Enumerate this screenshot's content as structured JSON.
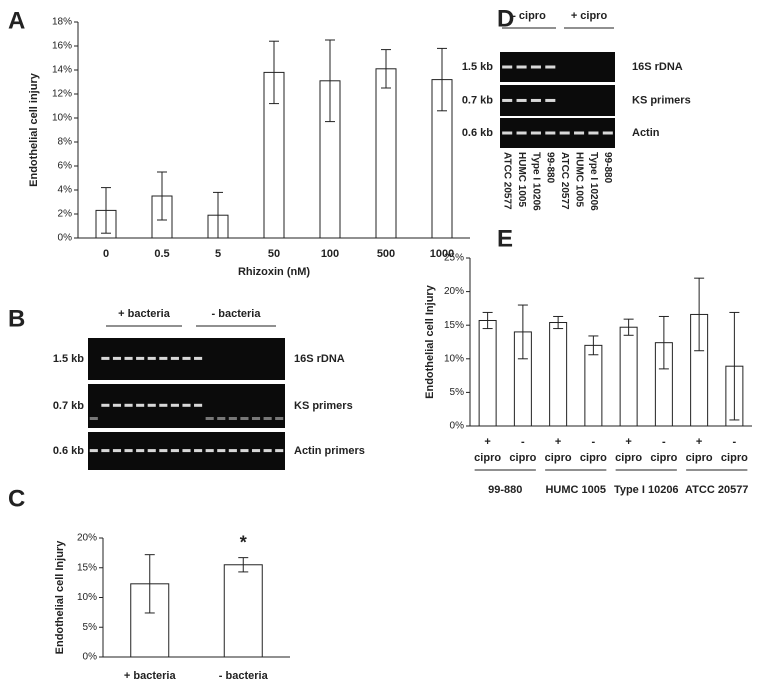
{
  "chart_data": [
    {
      "type": "bar",
      "panel": "A",
      "ylabel": "Endothelial cell injury",
      "xlabel": "Rhizoxin (nM)",
      "categories": [
        "0",
        "0.5",
        "5",
        "50",
        "100",
        "500",
        "1000"
      ],
      "values": [
        2.3,
        3.5,
        1.9,
        13.8,
        13.1,
        14.1,
        13.2
      ],
      "errors": [
        1.9,
        2.0,
        1.9,
        2.6,
        3.4,
        1.6,
        2.6
      ],
      "color": "#ffffff",
      "ylim": [
        0,
        18
      ],
      "yticks": [
        {
          "value": 0,
          "label": "0%"
        },
        {
          "value": 2,
          "label": "2%"
        },
        {
          "value": 4,
          "label": "4%"
        },
        {
          "value": 6,
          "label": "6%"
        },
        {
          "value": 8,
          "label": "8%"
        },
        {
          "value": 10,
          "label": "10%"
        },
        {
          "value": 12,
          "label": "12%"
        },
        {
          "value": 14,
          "label": "14%"
        },
        {
          "value": 16,
          "label": "16%"
        },
        {
          "value": 18,
          "label": "18%"
        }
      ]
    },
    {
      "type": "bar",
      "panel": "C",
      "ylabel": "Endothelial cell Injury",
      "categories": [
        "+ bacteria",
        "- bacteria"
      ],
      "values": [
        12.3,
        15.5
      ],
      "errors": [
        4.9,
        1.2
      ],
      "annotation": "*",
      "color": "#ffffff",
      "ylim": [
        0,
        20
      ],
      "yticks": [
        {
          "value": 0,
          "label": "0%"
        },
        {
          "value": 5,
          "label": "5%"
        },
        {
          "value": 10,
          "label": "10%"
        },
        {
          "value": 15,
          "label": "15%"
        },
        {
          "value": 20,
          "label": "20%"
        }
      ]
    },
    {
      "type": "bar",
      "panel": "E",
      "ylabel": "Endothelial cell Injury",
      "categories": [
        "+",
        "-",
        "+",
        "-",
        "+",
        "-",
        "+",
        "-"
      ],
      "category_sublabels": [
        "cipro",
        "cipro",
        "cipro",
        "cipro",
        "cipro",
        "cipro",
        "cipro",
        "cipro"
      ],
      "groups": [
        "99-880",
        "HUMC 1005",
        "Type I 10206",
        "ATCC 20577"
      ],
      "values": [
        15.7,
        14.0,
        15.4,
        12.0,
        14.7,
        12.4,
        16.6,
        8.9
      ],
      "errors": [
        1.2,
        4.0,
        0.9,
        1.4,
        1.2,
        3.9,
        5.4,
        8.0
      ],
      "color": "#ffffff",
      "ylim": [
        0,
        25
      ],
      "yticks": [
        {
          "value": 0,
          "label": "0%"
        },
        {
          "value": 5,
          "label": "5%"
        },
        {
          "value": 10,
          "label": "10%"
        },
        {
          "value": 15,
          "label": "15%"
        },
        {
          "value": 20,
          "label": "20%"
        },
        {
          "value": 25,
          "label": "25%"
        }
      ]
    }
  ],
  "gels": [
    {
      "panel": "B",
      "headers": [
        "+ bacteria",
        "- bacteria"
      ],
      "rows": [
        {
          "size": "1.5 kb",
          "label": "16S rDNA"
        },
        {
          "size": "0.7 kb",
          "label": "KS primers"
        },
        {
          "size": "0.6 kb",
          "label": "Actin primers"
        }
      ]
    },
    {
      "panel": "D",
      "headers": [
        "- cipro",
        "+ cipro"
      ],
      "rows": [
        {
          "size": "1.5 kb",
          "label": "16S rDNA"
        },
        {
          "size": "0.7 kb",
          "label": "KS primers"
        },
        {
          "size": "0.6 kb",
          "label": "Actin"
        }
      ],
      "lanes": [
        "ATCC 20577",
        "HUMC 1005",
        "Type I 10206",
        "99-880",
        "ATCC 20577",
        "HUMC 1005",
        "Type I 10206",
        "99-880"
      ]
    }
  ]
}
